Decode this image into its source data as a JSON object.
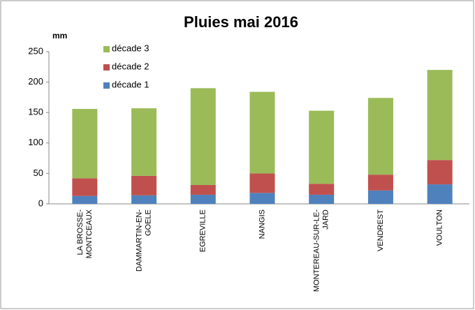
{
  "chart_data": {
    "type": "stacked_bar",
    "title": "Pluies mai 2016",
    "y_label": "mm",
    "categories": [
      "LA BROSSE-MONTCEAUX",
      "DAMMARTIN-EN-GOELE",
      "EGREVILLE",
      "NANGIS",
      "MONTEREAU-SUR-LE-JARD",
      "VENDREST",
      "VOULTON"
    ],
    "series": [
      {
        "name": "décade 1",
        "color": "#4f81bd",
        "values": [
          13,
          14,
          15,
          18,
          15,
          22,
          32
        ]
      },
      {
        "name": "décade 2",
        "color": "#c0504d",
        "values": [
          29,
          32,
          16,
          32,
          18,
          26,
          40
        ]
      },
      {
        "name": "décade 3",
        "color": "#9bbb59",
        "values": [
          114,
          111,
          159,
          134,
          120,
          126,
          148
        ]
      }
    ],
    "ylim": [
      0,
      250
    ],
    "yticks": [
      0,
      50,
      100,
      150,
      200,
      250
    ],
    "grid": false,
    "legend": "top-left"
  }
}
